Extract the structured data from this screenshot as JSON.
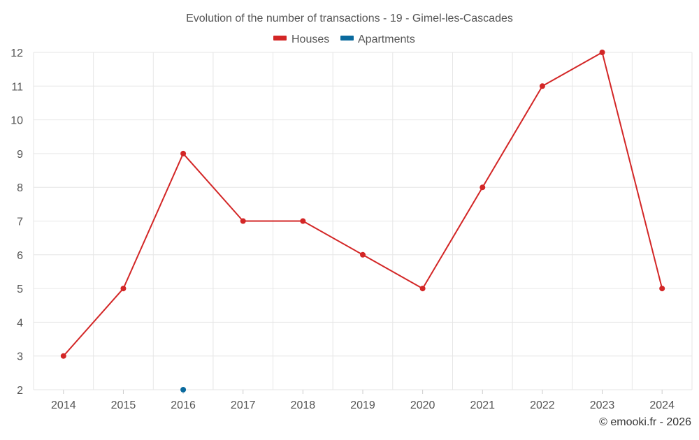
{
  "chart_data": {
    "type": "line",
    "title": "Evolution of the number of transactions - 19 - Gimel-les-Cascades",
    "categories": [
      "2014",
      "2015",
      "2016",
      "2017",
      "2018",
      "2019",
      "2020",
      "2021",
      "2022",
      "2023",
      "2024"
    ],
    "series": [
      {
        "name": "Houses",
        "color": "#d32626",
        "values": [
          3,
          5,
          9,
          7,
          7,
          6,
          5,
          8,
          11,
          12,
          5
        ]
      },
      {
        "name": "Apartments",
        "color": "#0a6a9e",
        "values": [
          null,
          null,
          2,
          null,
          null,
          null,
          null,
          null,
          null,
          null,
          null
        ]
      }
    ],
    "y_ticks": [
      2,
      3,
      4,
      5,
      6,
      7,
      8,
      9,
      10,
      11,
      12
    ],
    "ylim": [
      2,
      12
    ],
    "xlabel": "",
    "ylabel": "",
    "grid": true,
    "legend_position": "top-center"
  },
  "credit": "© emooki.fr - 2026"
}
